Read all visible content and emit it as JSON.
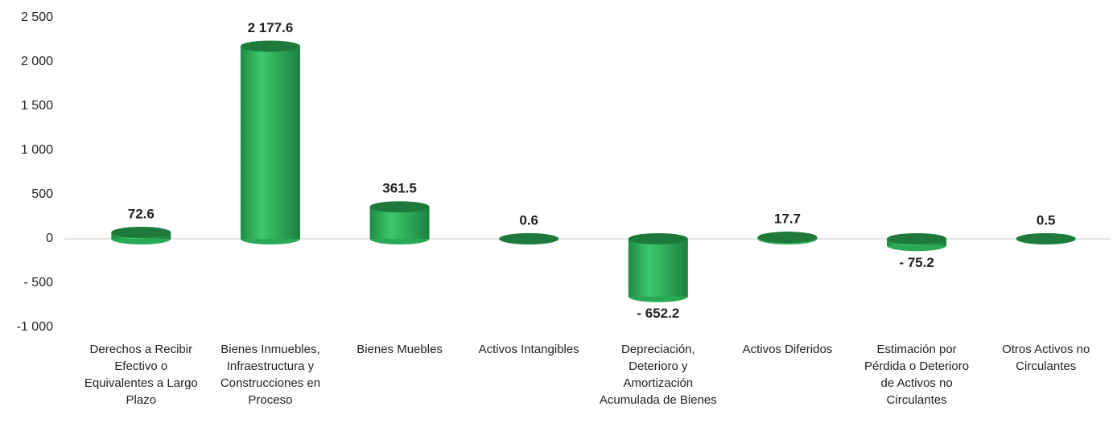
{
  "chart_data": {
    "type": "bar",
    "categories": [
      "Derechos a Recibir Efectivo o Equivalentes a Largo Plazo",
      "Bienes Inmuebles, Infraestructura y Construcciones en Proceso",
      "Bienes Muebles",
      "Activos Intangibles",
      "Depreciación, Deterioro y Amortización Acumulada de Bienes",
      "Activos Diferidos",
      "Estimación por Pérdida o Deterioro de Activos no Circulantes",
      "Otros Activos no Circulantes"
    ],
    "values": [
      72.6,
      2177.6,
      361.5,
      0.6,
      -652.2,
      17.7,
      -75.2,
      0.5
    ],
    "value_labels": [
      "72.6",
      "2 177.6",
      "361.5",
      "0.6",
      "- 652.2",
      "17.7",
      "- 75.2",
      "0.5"
    ],
    "color": "#2db35b",
    "ylim": [
      -1000,
      2500
    ],
    "yticks": [
      {
        "value": -1000,
        "label": "-1 000"
      },
      {
        "value": -500,
        "label": "- 500"
      },
      0,
      500,
      {
        "value": 1000,
        "label": "1 000"
      },
      {
        "value": 1500,
        "label": "1 500"
      },
      {
        "value": 2000,
        "label": "2 000"
      },
      {
        "value": 2500,
        "label": "2 500"
      }
    ],
    "grid": false
  }
}
